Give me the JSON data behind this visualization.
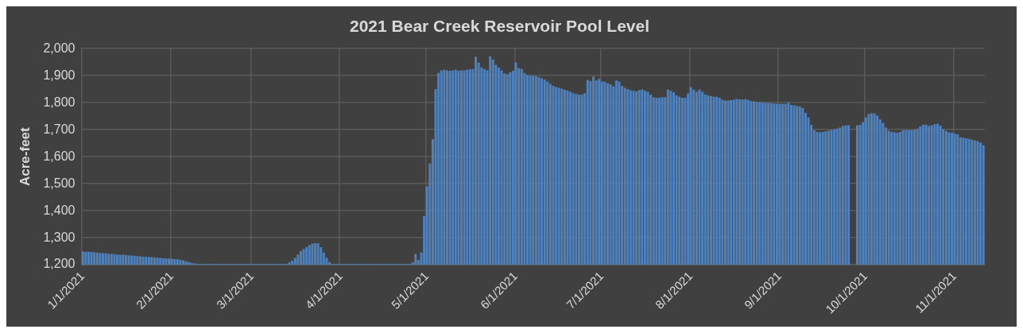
{
  "chart_data": {
    "type": "bar",
    "title": "2021 Bear Creek Reservoir Pool Level",
    "ylabel": "Acre-feet",
    "color": "#4f81bd",
    "grid": true,
    "ylim": [
      1200,
      2000
    ],
    "yticks": [
      {
        "value": 1200,
        "label": "1,200"
      },
      {
        "value": 1300,
        "label": "1,300"
      },
      {
        "value": 1400,
        "label": "1,400"
      },
      {
        "value": 1500,
        "label": "1,500"
      },
      {
        "value": 1600,
        "label": "1,600"
      },
      {
        "value": 1700,
        "label": "1,700"
      },
      {
        "value": 1800,
        "label": "1,800"
      },
      {
        "value": 1900,
        "label": "1,900"
      },
      {
        "value": 2000,
        "label": "2,000"
      }
    ],
    "categories": [
      "1/1/2021",
      null,
      null,
      null,
      null,
      null,
      null,
      null,
      null,
      null,
      null,
      null,
      null,
      null,
      null,
      null,
      null,
      null,
      null,
      null,
      null,
      null,
      null,
      null,
      null,
      null,
      null,
      null,
      null,
      null,
      null,
      "2/1/2021",
      null,
      null,
      null,
      null,
      null,
      null,
      null,
      null,
      null,
      null,
      null,
      null,
      null,
      null,
      null,
      null,
      null,
      null,
      null,
      null,
      null,
      null,
      null,
      null,
      null,
      null,
      null,
      "3/1/2021",
      null,
      null,
      null,
      null,
      null,
      null,
      null,
      null,
      null,
      null,
      null,
      null,
      null,
      null,
      null,
      null,
      null,
      null,
      null,
      null,
      null,
      null,
      null,
      null,
      null,
      null,
      null,
      null,
      null,
      null,
      "4/1/2021",
      null,
      null,
      null,
      null,
      null,
      null,
      null,
      null,
      null,
      null,
      null,
      null,
      null,
      null,
      null,
      null,
      null,
      null,
      null,
      null,
      null,
      null,
      null,
      null,
      null,
      null,
      null,
      null,
      null,
      "5/1/2021",
      null,
      null,
      null,
      null,
      null,
      null,
      null,
      null,
      null,
      null,
      null,
      null,
      null,
      null,
      null,
      null,
      null,
      null,
      null,
      null,
      null,
      null,
      null,
      null,
      null,
      null,
      null,
      null,
      null,
      null,
      "6/1/2021",
      null,
      null,
      null,
      null,
      null,
      null,
      null,
      null,
      null,
      null,
      null,
      null,
      null,
      null,
      null,
      null,
      null,
      null,
      null,
      null,
      null,
      null,
      null,
      null,
      null,
      null,
      null,
      null,
      null,
      "7/1/2021",
      null,
      null,
      null,
      null,
      null,
      null,
      null,
      null,
      null,
      null,
      null,
      null,
      null,
      null,
      null,
      null,
      null,
      null,
      null,
      null,
      null,
      null,
      null,
      null,
      null,
      null,
      null,
      null,
      null,
      null,
      "8/1/2021",
      null,
      null,
      null,
      null,
      null,
      null,
      null,
      null,
      null,
      null,
      null,
      null,
      null,
      null,
      null,
      null,
      null,
      null,
      null,
      null,
      null,
      null,
      null,
      null,
      null,
      null,
      null,
      null,
      null,
      null,
      "9/1/2021",
      null,
      null,
      null,
      null,
      null,
      null,
      null,
      null,
      null,
      null,
      null,
      null,
      null,
      null,
      null,
      null,
      null,
      null,
      null,
      null,
      null,
      null,
      null,
      null,
      null,
      null,
      null,
      null,
      null,
      "10/1/2021",
      null,
      null,
      null,
      null,
      null,
      null,
      null,
      null,
      null,
      null,
      null,
      null,
      null,
      null,
      null,
      null,
      null,
      null,
      null,
      null,
      null,
      null,
      null,
      null,
      null,
      null,
      null,
      null,
      null,
      null,
      "11/1/2021",
      null,
      null,
      null,
      null,
      null,
      null,
      null,
      null,
      null,
      null
    ],
    "values": [
      1249,
      1248,
      1248,
      1247,
      1246,
      1245,
      1244,
      1243,
      1242,
      1241,
      1240,
      1239,
      1238,
      1237,
      1237,
      1236,
      1235,
      1234,
      1233,
      1232,
      1231,
      1230,
      1229,
      1229,
      1228,
      1227,
      1226,
      1225,
      1224,
      1224,
      1223,
      1222,
      1221,
      1220,
      1218,
      1216,
      1213,
      1210,
      1207,
      1205,
      1204,
      1203,
      1203,
      1203,
      1203,
      1203,
      1203,
      1203,
      1203,
      1203,
      1203,
      1203,
      1203,
      1203,
      1203,
      1203,
      1203,
      1203,
      1203,
      1203,
      1203,
      1203,
      1203,
      1203,
      1203,
      1203,
      1203,
      1203,
      1203,
      1203,
      1203,
      1203,
      1208,
      1215,
      1225,
      1238,
      1250,
      1258,
      1265,
      1272,
      1278,
      1280,
      1280,
      1265,
      1245,
      1225,
      1210,
      1203,
      1203,
      1203,
      1203,
      1203,
      1203,
      1203,
      1203,
      1203,
      1203,
      1203,
      1203,
      1203,
      1203,
      1203,
      1203,
      1203,
      1203,
      1203,
      1203,
      1203,
      1203,
      1203,
      1203,
      1203,
      1203,
      1203,
      1203,
      1208,
      1240,
      1218,
      1245,
      1380,
      1490,
      1575,
      1665,
      1850,
      1910,
      1920,
      1922,
      1920,
      1918,
      1920,
      1922,
      1918,
      1920,
      1920,
      1922,
      1924,
      1925,
      1970,
      1948,
      1930,
      1925,
      1920,
      1972,
      1960,
      1940,
      1930,
      1920,
      1908,
      1905,
      1912,
      1918,
      1948,
      1928,
      1925,
      1910,
      1902,
      1900,
      1900,
      1898,
      1895,
      1890,
      1885,
      1878,
      1870,
      1862,
      1858,
      1855,
      1852,
      1848,
      1845,
      1840,
      1835,
      1832,
      1830,
      1830,
      1835,
      1884,
      1880,
      1897,
      1882,
      1888,
      1878,
      1878,
      1872,
      1868,
      1860,
      1882,
      1878,
      1862,
      1855,
      1850,
      1846,
      1844,
      1842,
      1846,
      1849,
      1845,
      1840,
      1830,
      1820,
      1818,
      1818,
      1820,
      1820,
      1848,
      1844,
      1838,
      1827,
      1822,
      1818,
      1818,
      1834,
      1857,
      1848,
      1840,
      1848,
      1840,
      1831,
      1827,
      1824,
      1822,
      1822,
      1818,
      1811,
      1808,
      1808,
      1809,
      1811,
      1814,
      1812,
      1812,
      1813,
      1810,
      1806,
      1804,
      1803,
      1802,
      1801,
      1800,
      1799,
      1798,
      1797,
      1796,
      1795,
      1795,
      1795,
      1800,
      1792,
      1790,
      1788,
      1786,
      1780,
      1762,
      1745,
      1718,
      1698,
      1692,
      1690,
      1692,
      1694,
      1696,
      1699,
      1701,
      1704,
      1708,
      1714,
      1716,
      1717,
      null,
      null,
      1716,
      1718,
      1728,
      1745,
      1758,
      1761,
      1760,
      1752,
      1738,
      1725,
      1708,
      1696,
      1692,
      1690,
      1689,
      1692,
      1698,
      1699,
      1699,
      1699,
      1700,
      1703,
      1712,
      1718,
      1718,
      1714,
      1716,
      1720,
      1722,
      1715,
      1702,
      1695,
      1690,
      1689,
      1685,
      1683,
      1672,
      1670,
      1668,
      1666,
      1663,
      1660,
      1657,
      1652,
      1642
    ]
  }
}
